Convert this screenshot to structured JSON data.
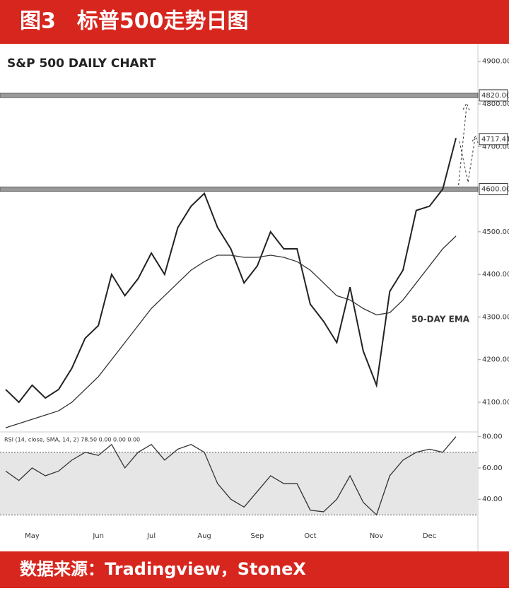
{
  "header": {
    "title": "图3　标普500走势日图"
  },
  "footer": {
    "source": "数据来源：Tradingview，StoneX"
  },
  "chart_data": [
    {
      "type": "line",
      "title": "S&P 500 DAILY CHART",
      "categories": [
        null,
        null,
        "May",
        null,
        null,
        null,
        null,
        "Jun",
        null,
        null,
        null,
        "Jul",
        null,
        null,
        null,
        "Aug",
        null,
        null,
        null,
        "Sep",
        null,
        null,
        null,
        "Oct",
        null,
        null,
        null,
        null,
        "Nov",
        null,
        null,
        null,
        "Dec",
        null,
        null
      ],
      "series": [
        {
          "name": "S&P 500",
          "color": "#222222",
          "values": [
            4130,
            4100,
            4140,
            4110,
            4130,
            4180,
            4250,
            4280,
            4400,
            4350,
            4390,
            4450,
            4400,
            4510,
            4560,
            4590,
            4510,
            4460,
            4380,
            4420,
            4500,
            4460,
            4460,
            4330,
            4290,
            4240,
            4370,
            4220,
            4140,
            4360,
            4410,
            4550,
            4560,
            4600,
            4720
          ]
        },
        {
          "name": "50-DAY EMA",
          "color": "#333333",
          "values": [
            4040,
            4050,
            4060,
            4070,
            4080,
            4100,
            4130,
            4160,
            4200,
            4240,
            4280,
            4320,
            4350,
            4380,
            4410,
            4430,
            4445,
            4445,
            4440,
            4440,
            4445,
            4440,
            4430,
            4410,
            4380,
            4350,
            4340,
            4320,
            4305,
            4310,
            4340,
            4380,
            4420,
            4460,
            4490
          ]
        }
      ],
      "ylim": [
        4032,
        4936
      ],
      "yticks": [
        {
          "value": 4100,
          "label": "4100.00"
        },
        {
          "value": 4200,
          "label": "4200.00"
        },
        {
          "value": 4300,
          "label": "4300.00"
        },
        {
          "value": 4400,
          "label": "4400.00"
        },
        {
          "value": 4500,
          "label": "4500.00"
        },
        {
          "value": 4700,
          "label": "4700.00"
        },
        {
          "value": 4800,
          "label": "4800.00"
        },
        {
          "value": 4900,
          "label": "4900.00"
        }
      ],
      "levels": [
        {
          "value": 4820,
          "label": "4820.00",
          "line": true
        },
        {
          "value": 4600,
          "label": "4600.00",
          "line": true
        },
        {
          "value": 4717.41,
          "label": "4717.41",
          "line": false
        }
      ]
    },
    {
      "type": "line",
      "title": "RSI (14, close, SMA, 14, 2) 78.50 0.00 0.00 0.00",
      "series": [
        {
          "name": "RSI",
          "color": "#333333",
          "values": [
            58,
            52,
            60,
            55,
            58,
            65,
            70,
            68,
            75,
            60,
            70,
            75,
            65,
            72,
            75,
            70,
            50,
            40,
            35,
            45,
            55,
            50,
            50,
            33,
            32,
            40,
            55,
            38,
            30,
            55,
            65,
            70,
            72,
            70,
            80
          ]
        }
      ],
      "ylim": [
        27,
        83
      ],
      "yticks": [
        {
          "value": 40,
          "label": "40.00"
        },
        {
          "value": 60,
          "label": "60.00"
        },
        {
          "value": 80,
          "label": "80.00"
        }
      ],
      "band": [
        30,
        70
      ]
    }
  ]
}
